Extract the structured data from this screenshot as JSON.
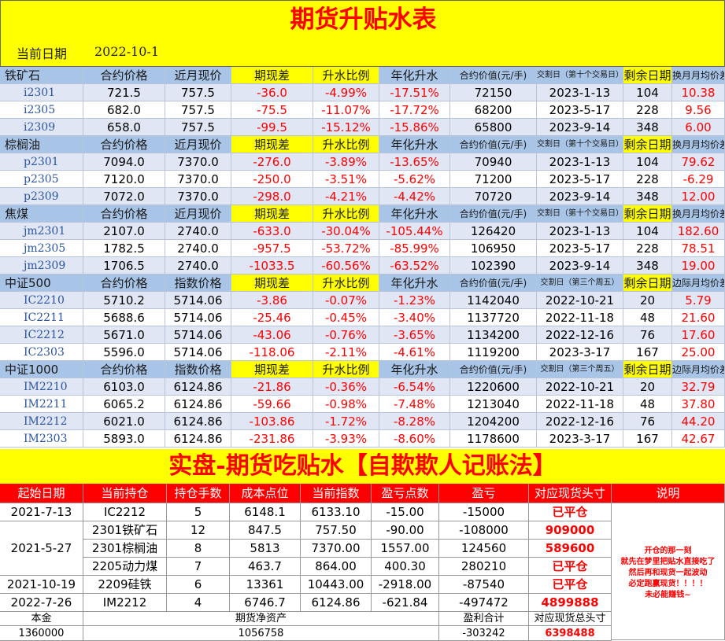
{
  "title": "期货升贴水表",
  "date_label": "当前日期",
  "date_value": "2022-10-1",
  "sections": [
    {
      "header": [
        "铁矿石",
        "合约价格",
        "近月现价",
        "期现差",
        "升水比例",
        "年化升水",
        "合约价值(元/手)",
        "交割日（第十个交易日）",
        "剩余日期",
        "换月月均价差"
      ],
      "rows": [
        [
          "i2301",
          "721.5",
          "757.5",
          "-36.0",
          "-4.99%",
          "-17.51%",
          "72150",
          "2023-1-13",
          "104",
          "10.38"
        ],
        [
          "i2305",
          "682.0",
          "757.5",
          "-75.5",
          "-11.07%",
          "-17.72%",
          "68200",
          "2023-5-17",
          "228",
          "9.56"
        ],
        [
          "i2309",
          "658.0",
          "757.5",
          "-99.5",
          "-15.12%",
          "-15.86%",
          "65800",
          "2023-9-14",
          "348",
          "6.00"
        ]
      ]
    },
    {
      "header": [
        "棕榈油",
        "合约价格",
        "近月现价",
        "期现差",
        "升水比例",
        "年化升水",
        "合约价值(元/手)",
        "交割日（第十个交易日）",
        "剩余日期",
        "换月月均价差"
      ],
      "rows": [
        [
          "p2301",
          "7094.0",
          "7370.0",
          "-276.0",
          "-3.89%",
          "-13.65%",
          "70940",
          "2023-1-13",
          "104",
          "79.62"
        ],
        [
          "p2305",
          "7120.0",
          "7370.0",
          "-250.0",
          "-3.51%",
          "-5.62%",
          "71200",
          "2023-5-17",
          "228",
          "-6.29"
        ],
        [
          "p2309",
          "7072.0",
          "7370.0",
          "-298.0",
          "-4.21%",
          "-4.42%",
          "70720",
          "2023-9-14",
          "348",
          "12.00"
        ]
      ]
    },
    {
      "header": [
        "焦煤",
        "合约价格",
        "近月现价",
        "期现差",
        "升水比例",
        "年化升水",
        "合约价值(元/手)",
        "交割日（第十个交易日）",
        "剩余日期",
        "换月月均价差"
      ],
      "rows": [
        [
          "jm2301",
          "2107.0",
          "2740.0",
          "-633.0",
          "-30.04%",
          "-105.44%",
          "126420",
          "2023-1-13",
          "104",
          "182.60"
        ],
        [
          "jm2305",
          "1782.5",
          "2740.0",
          "-957.5",
          "-53.72%",
          "-85.99%",
          "106950",
          "2023-5-17",
          "228",
          "78.51"
        ],
        [
          "jm2309",
          "1706.5",
          "2740.0",
          "-1033.5",
          "-60.56%",
          "-63.52%",
          "102390",
          "2023-9-14",
          "348",
          "19.00"
        ]
      ]
    },
    {
      "header": [
        "中证500",
        "合约价格",
        "指数价格",
        "期现差",
        "升水比例",
        "年化升水",
        "合约价值(元/手)",
        "交割日（第三个周五）",
        "剩余日期",
        "边际月均价差"
      ],
      "rows": [
        [
          "IC2210",
          "5710.2",
          "5714.06",
          "-3.86",
          "-0.07%",
          "-1.23%",
          "1142040",
          "2022-10-21",
          "20",
          "5.79"
        ],
        [
          "IC2211",
          "5688.6",
          "5714.06",
          "-25.46",
          "-0.45%",
          "-3.40%",
          "1137720",
          "2022-11-18",
          "48",
          "21.60"
        ],
        [
          "IC2212",
          "5671.0",
          "5714.06",
          "-43.06",
          "-0.76%",
          "-3.65%",
          "1134200",
          "2022-12-16",
          "76",
          "17.60"
        ],
        [
          "IC2303",
          "5596.0",
          "5714.06",
          "-118.06",
          "-2.11%",
          "-4.61%",
          "1119200",
          "2023-3-17",
          "167",
          "25.00"
        ]
      ]
    },
    {
      "header": [
        "中证1000",
        "合约价格",
        "指数价格",
        "期现差",
        "升水比例",
        "年化升水",
        "合约价值(元/手)",
        "交割日（第三个周五）",
        "剩余日期",
        "边际月均价差"
      ],
      "rows": [
        [
          "IM2210",
          "6103.0",
          "6124.86",
          "-21.86",
          "-0.36%",
          "-6.54%",
          "1220600",
          "2022-10-21",
          "20",
          "32.79"
        ],
        [
          "IM2211",
          "6065.2",
          "6124.86",
          "-59.66",
          "-0.98%",
          "-7.48%",
          "1213040",
          "2022-11-18",
          "48",
          "37.80"
        ],
        [
          "IM2212",
          "6021.0",
          "6124.86",
          "-103.86",
          "-1.72%",
          "-8.28%",
          "1204200",
          "2022-12-16",
          "76",
          "44.20"
        ],
        [
          "IM2303",
          "5893.0",
          "6124.86",
          "-231.86",
          "-3.93%",
          "-8.60%",
          "1178600",
          "2023-3-17",
          "167",
          "42.67"
        ]
      ]
    }
  ],
  "banner": "实盘-期货吃贴水【自欺欺人记账法】",
  "ledger": {
    "headers": [
      "起始日期",
      "当前持仓",
      "持仓手数",
      "成本点位",
      "当前指数",
      "盈亏点数",
      "盈亏",
      "对应现货头寸",
      "说明"
    ],
    "rows": [
      [
        "2021-7-13",
        "IC2212",
        "5",
        "6148.1",
        "6133.10",
        "-15.00",
        "-15000",
        "已平仓"
      ],
      [
        "2021-5-27",
        "2301铁矿石",
        "12",
        "847.5",
        "757.50",
        "-90.00",
        "-108000",
        "909000"
      ],
      [
        "",
        "2301棕榈油",
        "8",
        "5813",
        "7370.00",
        "1557.00",
        "124560",
        "589600"
      ],
      [
        "",
        "2205动力煤",
        "7",
        "463.7",
        "864.00",
        "400.30",
        "280210",
        "已平仓"
      ],
      [
        "2021-10-19",
        "2209硅铁",
        "6",
        "13361",
        "10443.00",
        "-2918.00",
        "-87540",
        "已平仓"
      ],
      [
        "2022-7-26",
        "IM2212",
        "4",
        "6746.7",
        "6124.86",
        "-621.84",
        "-497472",
        "4899888"
      ]
    ],
    "note": "开仓的那一刻\n就先在梦里把贴水直接吃了\n然后再和现货一起波动\n必定跑赢现货！！！！\n未必能赚钱~",
    "footer": {
      "capital_label": "本金",
      "capital_value": "1360000",
      "net_label": "期货净资产",
      "net_value": "1056758",
      "pnl_label": "盈利合计",
      "pnl_value": "-303242",
      "spot_label": "对应现货总头寸",
      "spot_value": "6398488"
    }
  },
  "colors": {
    "yellow": "#ffff00",
    "red": "#ff0000",
    "header_blue": "#a8c4e6",
    "row_stripe": "#e0e6f4",
    "code_blue": "#2b55a0"
  }
}
